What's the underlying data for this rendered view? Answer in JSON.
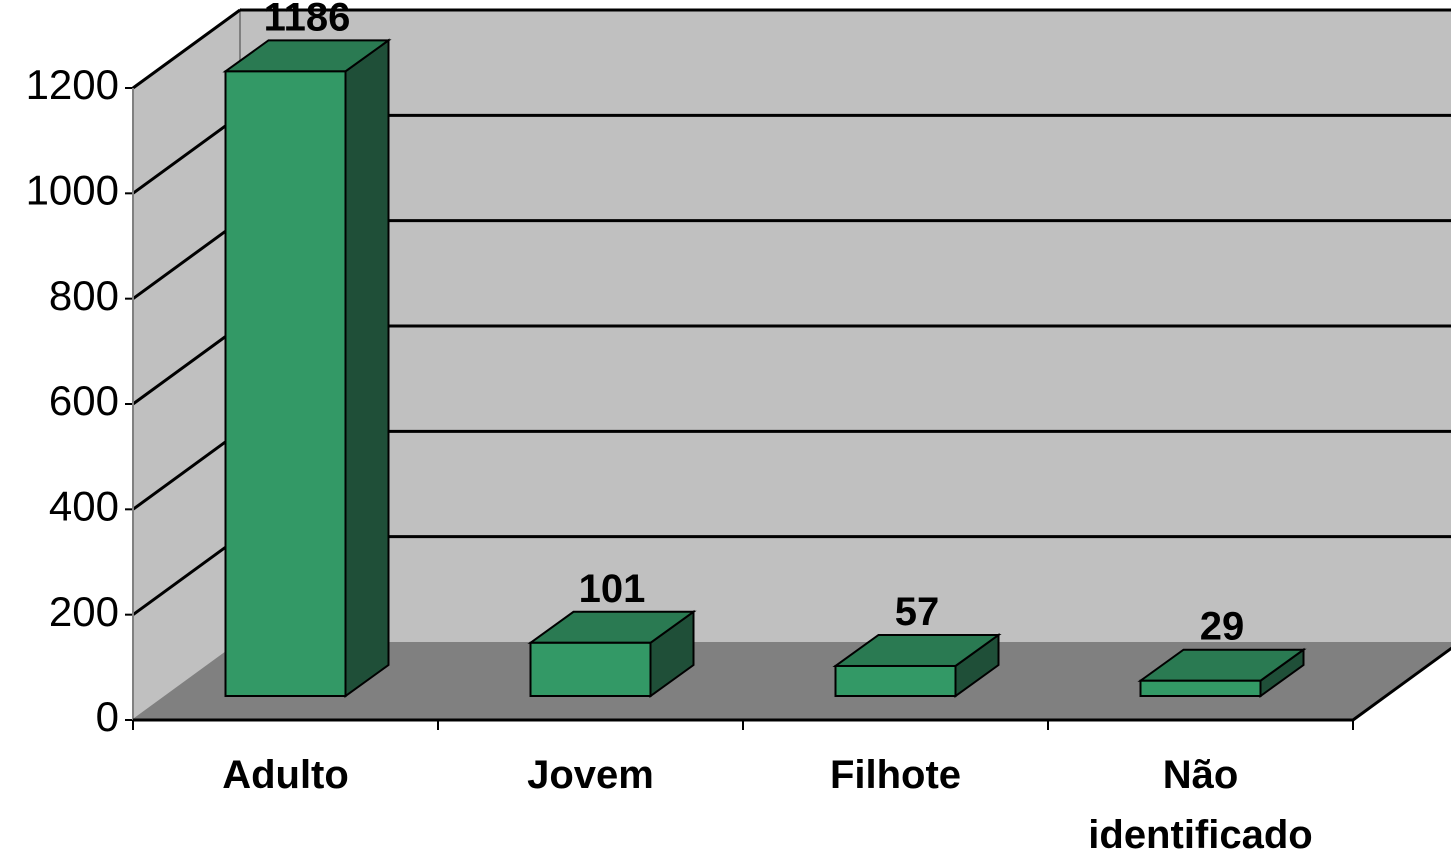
{
  "chart_data": {
    "type": "bar",
    "categories": [
      "Adulto",
      "Jovem",
      "Filhote",
      "Não identificado"
    ],
    "category_lines": [
      [
        "Adulto"
      ],
      [
        "Jovem"
      ],
      [
        "Filhote"
      ],
      [
        "Não",
        "identificado"
      ]
    ],
    "values": [
      1186,
      101,
      57,
      29
    ],
    "data_labels": [
      "1186",
      "101",
      "57",
      "29"
    ],
    "y_ticks": [
      "0",
      "200",
      "400",
      "600",
      "800",
      "1000",
      "1200"
    ],
    "ylim": [
      0,
      1200
    ],
    "grid": true,
    "style": "3d-column",
    "colors": {
      "bar_front": "#339966",
      "bar_top": "#2a7a52",
      "bar_side": "#1f4f38",
      "back_wall": "#c0c0c0",
      "side_wall": "#c0c0c0",
      "floor": "#808080",
      "gridline": "#000000"
    }
  }
}
